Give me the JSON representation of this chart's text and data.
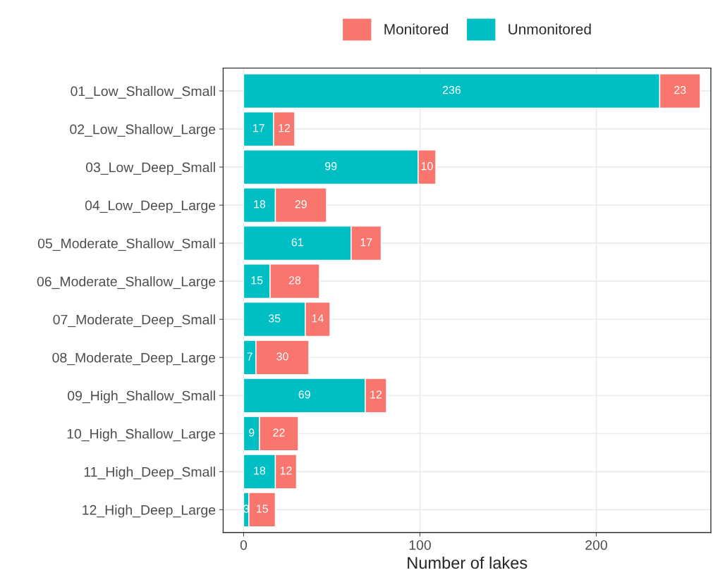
{
  "chart_data": {
    "type": "bar",
    "orientation": "horizontal",
    "stacked": true,
    "categories": [
      "01_Low_Shallow_Small",
      "02_Low_Shallow_Large",
      "03_Low_Deep_Small",
      "04_Low_Deep_Large",
      "05_Moderate_Shallow_Small",
      "06_Moderate_Shallow_Large",
      "07_Moderate_Deep_Small",
      "08_Moderate_Deep_Large",
      "09_High_Shallow_Small",
      "10_High_Shallow_Large",
      "11_High_Deep_Small",
      "12_High_Deep_Large"
    ],
    "series": [
      {
        "name": "Unmonitored",
        "color": "#00bfc4",
        "values": [
          236,
          17,
          99,
          18,
          61,
          15,
          35,
          7,
          69,
          9,
          18,
          3
        ]
      },
      {
        "name": "Monitored",
        "color": "#f8766d",
        "values": [
          23,
          12,
          10,
          29,
          17,
          28,
          14,
          30,
          12,
          22,
          12,
          15
        ]
      }
    ],
    "xlabel": "Number of lakes",
    "xlim": [
      -11.6,
      265
    ],
    "xticks": [
      0,
      100,
      200
    ],
    "data_labels": true,
    "grid": true,
    "legend": "top"
  }
}
